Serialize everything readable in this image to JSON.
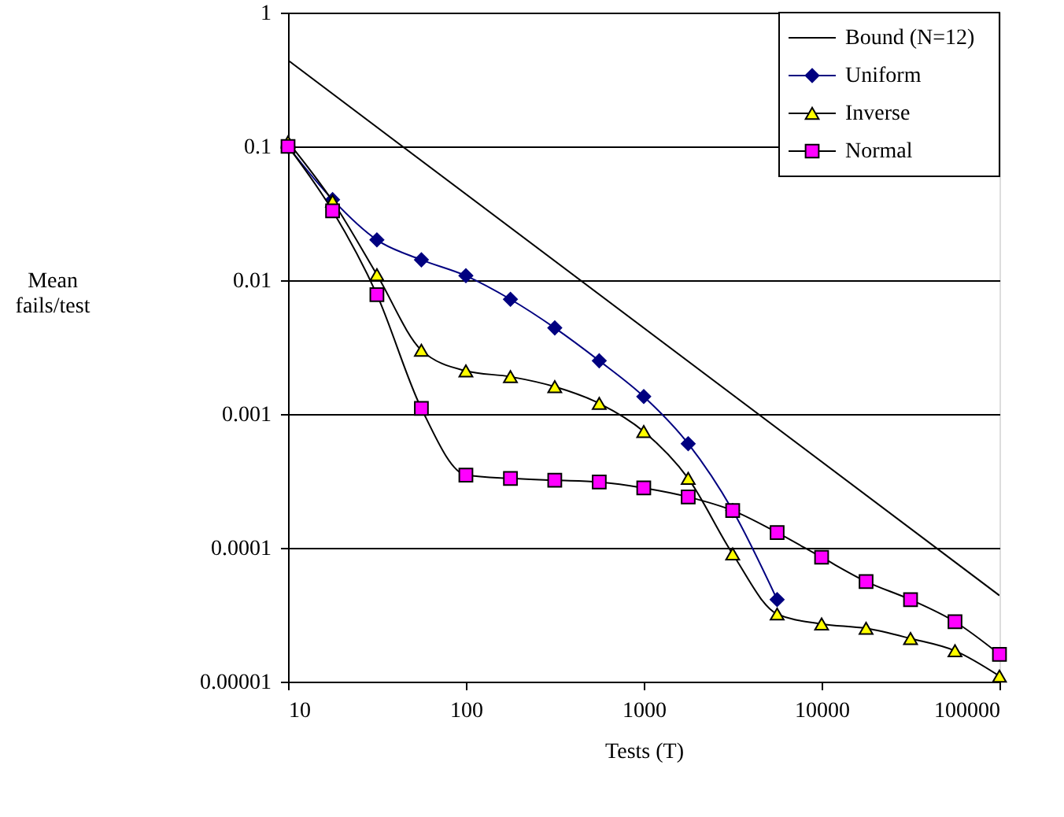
{
  "chart_data": {
    "type": "line",
    "xlabel": "Tests (T)",
    "ylabel": "Mean fails/test",
    "log": "xy",
    "grid": "y",
    "legend": "top right",
    "xlim": [
      10,
      100000
    ],
    "xticks": [
      10,
      100,
      1000,
      10000,
      100000
    ],
    "ylim": [
      1e-05,
      1
    ],
    "yticks": [
      {
        "value": 1e-05,
        "label": "0.00001"
      },
      0.0001,
      0.001,
      0.01,
      0.1,
      1
    ],
    "series": [
      {
        "name": "Bound (N=12)",
        "color": "#000000",
        "marker": "none",
        "x": [
          10,
          100000
        ],
        "values": [
          0.44,
          4.4e-05
        ]
      },
      {
        "name": "Uniform",
        "color": "#000080",
        "marker": "diamond",
        "x": [
          10,
          17.8,
          31.6,
          56.2,
          100,
          178,
          316,
          562,
          1000,
          1778,
          3162,
          5623
        ],
        "values": [
          0.1,
          0.04,
          0.02,
          0.0142,
          0.0108,
          0.0072,
          0.0044,
          0.0025,
          0.00135,
          0.0006,
          0.00019,
          4.1e-05
        ]
      },
      {
        "name": "Inverse",
        "color": "#ffff00",
        "marker": "triangle",
        "x": [
          10,
          17.8,
          31.6,
          56.2,
          100,
          178,
          316,
          562,
          1000,
          1778,
          3162,
          5623,
          10000,
          17783,
          31623,
          56234,
          100000
        ],
        "values": [
          0.108,
          0.039,
          0.011,
          0.003,
          0.0021,
          0.0019,
          0.0016,
          0.0012,
          0.00074,
          0.00033,
          9e-05,
          3.2e-05,
          2.7e-05,
          2.5e-05,
          2.1e-05,
          1.7e-05,
          1.1e-05
        ]
      },
      {
        "name": "Normal",
        "color": "#ff00ff",
        "marker": "square",
        "x": [
          10,
          17.8,
          31.6,
          56.2,
          100,
          178,
          316,
          562,
          1000,
          1778,
          3162,
          5623,
          10000,
          17783,
          31623,
          56234,
          100000
        ],
        "values": [
          0.1,
          0.033,
          0.0078,
          0.0011,
          0.00035,
          0.00033,
          0.00032,
          0.00031,
          0.00028,
          0.00024,
          0.00019,
          0.00013,
          8.5e-05,
          5.6e-05,
          4.1e-05,
          2.8e-05,
          1.6e-05
        ]
      }
    ]
  }
}
